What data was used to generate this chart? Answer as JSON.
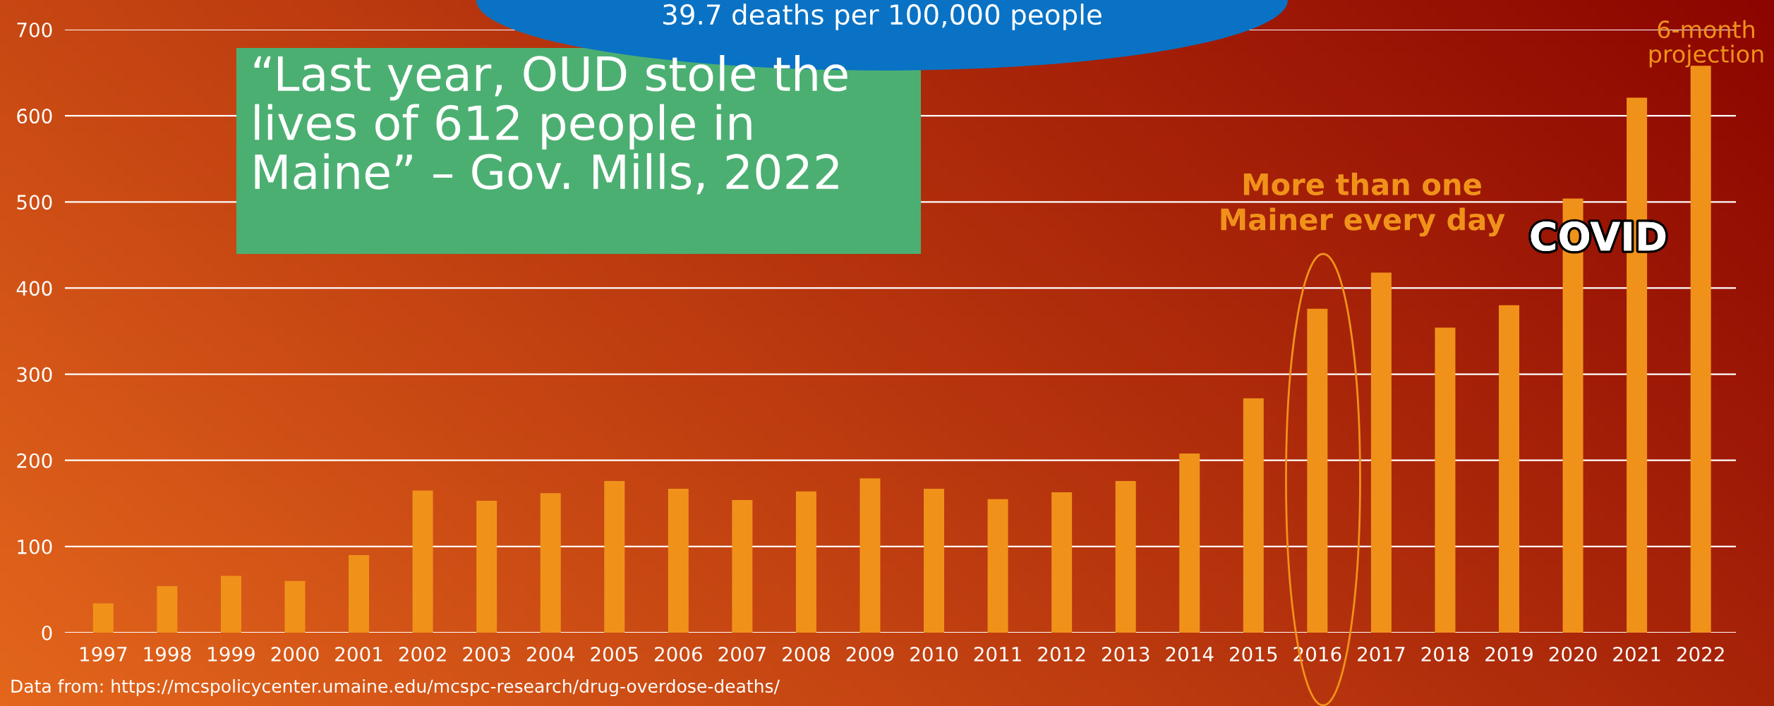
{
  "chart_data": {
    "type": "bar",
    "categories": [
      "1997",
      "1998",
      "1999",
      "2000",
      "2001",
      "2002",
      "2003",
      "2004",
      "2005",
      "2006",
      "2007",
      "2008",
      "2009",
      "2010",
      "2011",
      "2012",
      "2013",
      "2014",
      "2015",
      "2016",
      "2017",
      "2018",
      "2019",
      "2020",
      "2021",
      "2022"
    ],
    "values": [
      34,
      54,
      66,
      60,
      90,
      165,
      153,
      162,
      176,
      167,
      154,
      164,
      179,
      167,
      155,
      163,
      176,
      208,
      272,
      376,
      418,
      354,
      380,
      504,
      621,
      658
    ],
    "color": "#f0921a",
    "ylim": [
      0,
      700
    ],
    "yticks": [
      0,
      100,
      200,
      300,
      400,
      500,
      600,
      700
    ],
    "grid": "y",
    "annotations": [
      "“Last year, OUD stole the\nlives of 612 people in\nMaine” – Gov. Mills, 2022",
      "39.7 deaths per 100,000 people",
      "Data from: https://mcspolicycenter.umaine.edu/mcspc-research/drug-overdose-deaths/",
      "More than one\nMainer every day",
      "COVID",
      "6-month\nprojection"
    ]
  }
}
